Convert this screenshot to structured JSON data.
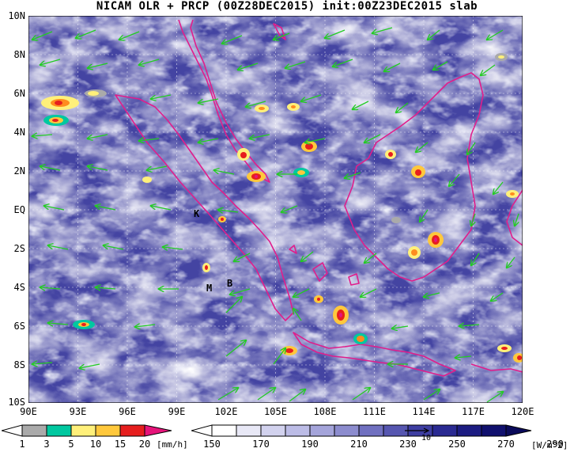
{
  "title": "NICAM OLR + PRCP (00Z28DEC2015) init:00Z23DEC2015 slab",
  "lat_labels": [
    "10N",
    "8N",
    "6N",
    "4N",
    "2N",
    "EQ",
    "2S",
    "4S",
    "6S",
    "8S",
    "10S"
  ],
  "lon_labels": [
    "90E",
    "93E",
    "96E",
    "99E",
    "102E",
    "105E",
    "108E",
    "111E",
    "114E",
    "117E",
    "120E"
  ],
  "place_labels": [
    "K",
    "M",
    "B"
  ],
  "precip_legend": {
    "ticks": [
      "1",
      "3",
      "5",
      "10",
      "15",
      "20"
    ],
    "unit": "[mm/h]",
    "colors": [
      "#aaaaaa",
      "#00c8a0",
      "#fff07a",
      "#ffc83c",
      "#ff8c1e",
      "#e61e1e",
      "#e6147a"
    ]
  },
  "olr_legend": {
    "ticks": [
      "150",
      "170",
      "190",
      "210",
      "230",
      "250",
      "270",
      "290"
    ],
    "unit": "[W/m^2]",
    "vector_ref": "10",
    "colors": [
      "#ffffff",
      "#e8e8f6",
      "#d2d2ee",
      "#bcbce6",
      "#a4a4da",
      "#8c8cce",
      "#7070c0",
      "#5656b0",
      "#3e3ea2",
      "#2a2a92",
      "#1c1c82",
      "#10106e"
    ]
  },
  "colors": {
    "coastline": "#e01e8c",
    "wind_vector": "#22cc22",
    "cloud_dense": "#ffffff",
    "clear_sky": "#1c1c7a"
  }
}
